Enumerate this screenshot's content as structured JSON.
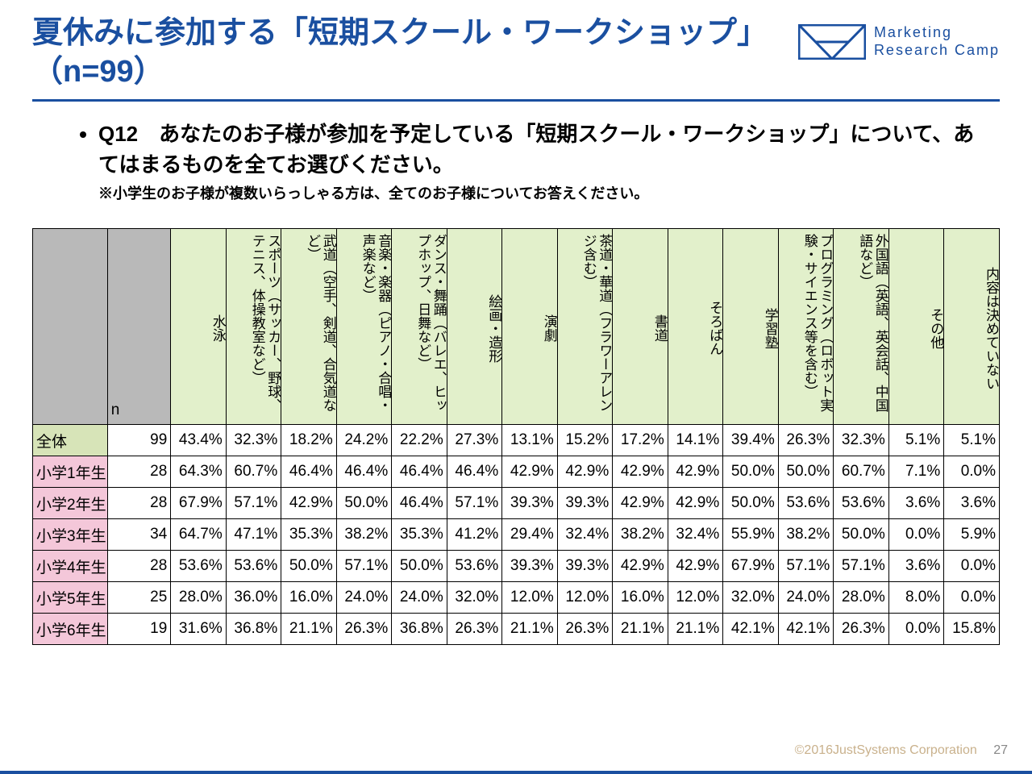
{
  "title": "夏休みに参加する「短期スクール・ワークショップ」（n=99）",
  "logo": {
    "line1": "Marketing",
    "line2": "Research Camp"
  },
  "question": "Q12　あなたのお子様が参加を予定している「短期スクール・ワークショップ」について、あてはまるものを全てお選びください。",
  "note": "※小学生のお子様が複数いらっしゃる方は、全てのお子様についてお答えください。",
  "columns": [
    "水泳",
    "スポーツ（サッカー、野球、テニス、体操教室など）",
    "武道（空手、剣道、合気道など）",
    "音楽・楽器（ピアノ・合唱・声楽など）",
    "ダンス・舞踊（バレエ、ヒップホップ、日舞など）",
    "絵画・造形",
    "演劇",
    "茶道・華道（フラワーアレンジ含む）",
    "書道",
    "そろばん",
    "学習塾",
    "プログラミング（ロボット実験・サイエンス等を含む）",
    "外国語（英語、英会話、中国語など）",
    "その他",
    "内容は決めていない"
  ],
  "n_label": "n",
  "rows": [
    {
      "label": "全体",
      "class": "total",
      "n": 99,
      "vals": [
        "43.4%",
        "32.3%",
        "18.2%",
        "24.2%",
        "22.2%",
        "27.3%",
        "13.1%",
        "15.2%",
        "17.2%",
        "14.1%",
        "39.4%",
        "26.3%",
        "32.3%",
        "5.1%",
        "5.1%"
      ]
    },
    {
      "label": "小学1年生",
      "class": "grade",
      "n": 28,
      "vals": [
        "64.3%",
        "60.7%",
        "46.4%",
        "46.4%",
        "46.4%",
        "46.4%",
        "42.9%",
        "42.9%",
        "42.9%",
        "42.9%",
        "50.0%",
        "50.0%",
        "60.7%",
        "7.1%",
        "0.0%"
      ]
    },
    {
      "label": "小学2年生",
      "class": "grade",
      "n": 28,
      "vals": [
        "67.9%",
        "57.1%",
        "42.9%",
        "50.0%",
        "46.4%",
        "57.1%",
        "39.3%",
        "39.3%",
        "42.9%",
        "42.9%",
        "50.0%",
        "53.6%",
        "53.6%",
        "3.6%",
        "3.6%"
      ]
    },
    {
      "label": "小学3年生",
      "class": "grade",
      "n": 34,
      "vals": [
        "64.7%",
        "47.1%",
        "35.3%",
        "38.2%",
        "35.3%",
        "41.2%",
        "29.4%",
        "32.4%",
        "38.2%",
        "32.4%",
        "55.9%",
        "38.2%",
        "50.0%",
        "0.0%",
        "5.9%"
      ]
    },
    {
      "label": "小学4年生",
      "class": "grade",
      "n": 28,
      "vals": [
        "53.6%",
        "53.6%",
        "50.0%",
        "57.1%",
        "50.0%",
        "53.6%",
        "39.3%",
        "39.3%",
        "42.9%",
        "42.9%",
        "67.9%",
        "57.1%",
        "57.1%",
        "3.6%",
        "0.0%"
      ]
    },
    {
      "label": "小学5年生",
      "class": "grade",
      "n": 25,
      "vals": [
        "28.0%",
        "36.0%",
        "16.0%",
        "24.0%",
        "24.0%",
        "32.0%",
        "12.0%",
        "12.0%",
        "16.0%",
        "12.0%",
        "32.0%",
        "24.0%",
        "28.0%",
        "8.0%",
        "0.0%"
      ]
    },
    {
      "label": "小学6年生",
      "class": "grade",
      "n": 19,
      "vals": [
        "31.6%",
        "36.8%",
        "21.1%",
        "26.3%",
        "36.8%",
        "26.3%",
        "21.1%",
        "26.3%",
        "21.1%",
        "21.1%",
        "42.1%",
        "42.1%",
        "26.3%",
        "0.0%",
        "15.8%"
      ]
    }
  ],
  "footer": {
    "copyright": "©2016JustSystems Corporation",
    "page": "27"
  },
  "colors": {
    "brand": "#1a4fa0",
    "header_gray": "#b9b9b9",
    "col_green": "#e2f0cb",
    "row_total": "#d7e4b8",
    "row_grade": "#f4c7d9"
  }
}
